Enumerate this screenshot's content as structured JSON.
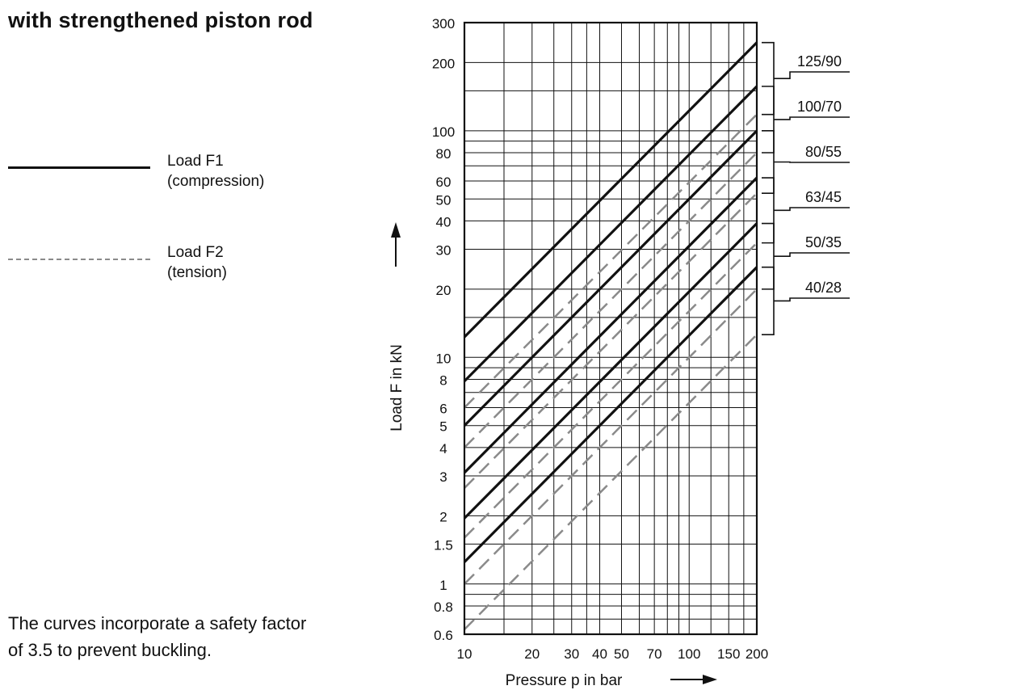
{
  "title": "with strengthened piston rod",
  "legend": {
    "f1": {
      "line1": "Load F1",
      "line2": "(compression)"
    },
    "f2": {
      "line1": "Load F2",
      "line2": "(tension)"
    }
  },
  "note": {
    "line1": "The curves incorporate a safety factor",
    "line2": "of 3.5 to prevent buckling."
  },
  "colors": {
    "compression": "#111111",
    "tension": "#8a8a8a",
    "grid": "#111111"
  },
  "chart_data": {
    "type": "line",
    "xscale": "log",
    "yscale": "log",
    "xlim": [
      10,
      200
    ],
    "ylim": [
      0.6,
      300
    ],
    "grid": true,
    "xlabel": "Pressure p in bar",
    "ylabel": "Load F in kN",
    "xticks": [
      10,
      20,
      30,
      40,
      50,
      70,
      100,
      150,
      200
    ],
    "xtick_labels": [
      "10",
      "20",
      "30",
      "40",
      "50",
      "70",
      "100",
      "150",
      "200"
    ],
    "xgrid": [
      10,
      15,
      20,
      25,
      30,
      35,
      40,
      50,
      60,
      70,
      80,
      90,
      100,
      125,
      150,
      175,
      200
    ],
    "yticks": [
      0.6,
      0.8,
      1,
      1.5,
      2,
      3,
      4,
      5,
      6,
      8,
      10,
      20,
      30,
      40,
      50,
      60,
      80,
      100,
      200,
      300
    ],
    "ytick_labels": [
      "0.6",
      "0.8",
      "1",
      "1.5",
      "2",
      "3",
      "4",
      "5",
      "6",
      "8",
      "10",
      "20",
      "30",
      "40",
      "50",
      "60",
      "80",
      "100",
      "200",
      "300"
    ],
    "ygrid": [
      0.6,
      0.7,
      0.8,
      0.9,
      1,
      1.5,
      2,
      3,
      4,
      5,
      6,
      7,
      8,
      9,
      10,
      15,
      20,
      30,
      40,
      50,
      60,
      70,
      80,
      90,
      100,
      150,
      200,
      300
    ],
    "series": [
      {
        "label": "125/90",
        "f1": [
          [
            10,
            12.3
          ],
          [
            200,
            245
          ]
        ],
        "f2": [
          [
            10,
            6.0
          ],
          [
            200,
            118
          ]
        ]
      },
      {
        "label": "100/70",
        "f1": [
          [
            10,
            7.85
          ],
          [
            200,
            157
          ]
        ],
        "f2": [
          [
            10,
            4.0
          ],
          [
            200,
            80
          ]
        ]
      },
      {
        "label": "80/55",
        "f1": [
          [
            10,
            5.0
          ],
          [
            200,
            100
          ]
        ],
        "f2": [
          [
            10,
            2.65
          ],
          [
            200,
            53
          ]
        ]
      },
      {
        "label": "63/45",
        "f1": [
          [
            10,
            3.1
          ],
          [
            200,
            62
          ]
        ],
        "f2": [
          [
            10,
            1.6
          ],
          [
            200,
            32
          ]
        ]
      },
      {
        "label": "50/35",
        "f1": [
          [
            10,
            1.95
          ],
          [
            200,
            39
          ]
        ],
        "f2": [
          [
            10,
            1.0
          ],
          [
            200,
            20
          ]
        ]
      },
      {
        "label": "40/28",
        "f1": [
          [
            10,
            1.25
          ],
          [
            200,
            25
          ]
        ],
        "f2": [
          [
            10,
            0.63
          ],
          [
            200,
            12.6
          ]
        ]
      }
    ]
  }
}
